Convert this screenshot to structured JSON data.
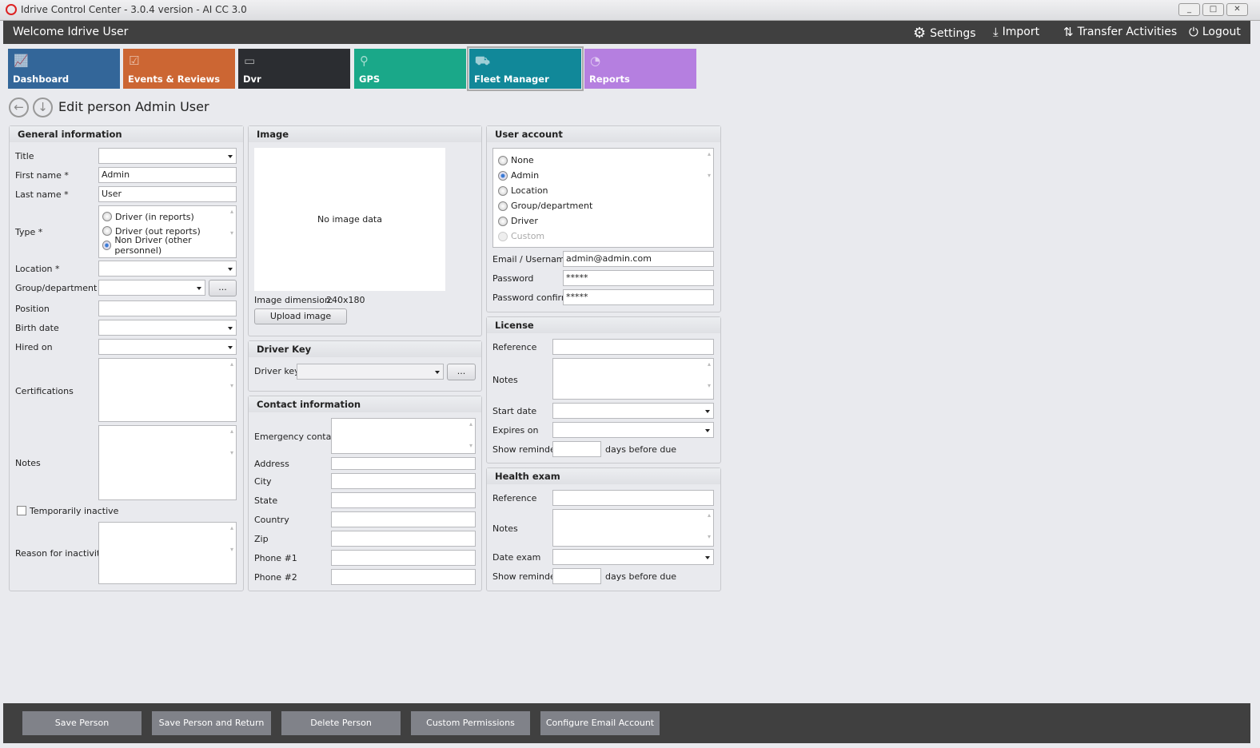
{
  "window": {
    "title": "Idrive Control Center - 3.0.4 version - AI CC 3.0",
    "minimize": "_",
    "maximize": "□",
    "close": "✕"
  },
  "header": {
    "welcome": "Welcome Idrive User",
    "settings": "Settings",
    "import": "Import",
    "transfer": "Transfer Activities",
    "logout": "Logout"
  },
  "tiles": [
    {
      "label": "Dashboard",
      "color": "#336699",
      "icon": "chart-icon"
    },
    {
      "label": "Events & Reviews",
      "color": "#cc6633",
      "icon": "clipboard-icon"
    },
    {
      "label": "Dvr",
      "color": "#2b2d31",
      "icon": "dvr-icon"
    },
    {
      "label": "GPS",
      "color": "#1aa889",
      "icon": "map-pin-icon"
    },
    {
      "label": "Fleet Manager",
      "color": "#118899",
      "icon": "trucks-icon",
      "active": true
    },
    {
      "label": "Reports",
      "color": "#b57fe0",
      "icon": "pie-chart-icon"
    }
  ],
  "page": {
    "title": "Edit person Admin User"
  },
  "general": {
    "heading": "General information",
    "title_label": "Title",
    "first_name_label": "First name *",
    "first_name": "Admin",
    "last_name_label": "Last name *",
    "last_name": "User",
    "type_label": "Type *",
    "type_options": [
      "Driver (in reports)",
      "Driver (out reports)",
      "Non Driver (other personnel)"
    ],
    "type_selected": "Non Driver (other personnel)",
    "location_label": "Location *",
    "group_label": "Group/department",
    "browse": "...",
    "position_label": "Position",
    "birth_label": "Birth date",
    "hired_label": "Hired on",
    "cert_label": "Certifications",
    "notes_label": "Notes",
    "inactive_label": "Temporarily inactive",
    "reason_label": "Reason for inactivity"
  },
  "image": {
    "heading": "Image",
    "no_data": "No image data",
    "dimension_label": "Image dimension:",
    "dimension": "240x180",
    "upload": "Upload image"
  },
  "driver_key": {
    "heading": "Driver Key",
    "label": "Driver key",
    "browse": "..."
  },
  "contact": {
    "heading": "Contact information",
    "emergency": "Emergency contact",
    "address": "Address",
    "city": "City",
    "state": "State",
    "country": "Country",
    "zip": "Zip",
    "phone1": "Phone #1",
    "phone2": "Phone #2"
  },
  "account": {
    "heading": "User account",
    "options": [
      "None",
      "Admin",
      "Location",
      "Group/department",
      "Driver",
      "Custom"
    ],
    "selected": "Admin",
    "email_label": "Email / Username",
    "email": "admin@admin.com",
    "password_label": "Password",
    "password": "*****",
    "confirm_label": "Password confirm",
    "confirm": "*****"
  },
  "license": {
    "heading": "License",
    "reference": "Reference",
    "notes": "Notes",
    "start": "Start date",
    "expires": "Expires on",
    "reminder": "Show reminder",
    "days": "days before due"
  },
  "health": {
    "heading": "Health exam",
    "reference": "Reference",
    "notes": "Notes",
    "date": "Date exam",
    "reminder": "Show reminder",
    "days": "days before due"
  },
  "actions": [
    "Save Person",
    "Save Person and Return",
    "Delete Person",
    "Custom Permissions",
    "Configure Email Account"
  ]
}
